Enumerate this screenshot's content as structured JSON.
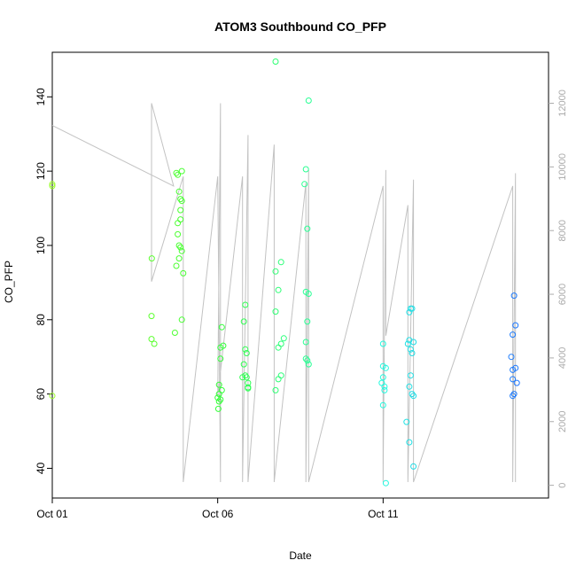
{
  "chart_data": {
    "type": "scatter",
    "title": "ATOM3 Southbound CO_PFP",
    "xlabel": "Date",
    "ylabel": "CO_PFP",
    "x_type": "date",
    "xlim": [
      "2016-10-01",
      "2016-10-16"
    ],
    "ylim": [
      32,
      152
    ],
    "x_ticks": [
      {
        "value": "2016-10-01",
        "label": "Oct 01"
      },
      {
        "value": "2016-10-06",
        "label": "Oct 06"
      },
      {
        "value": "2016-10-11",
        "label": "Oct 11"
      }
    ],
    "y_ticks": [
      40,
      60,
      80,
      100,
      120,
      140
    ],
    "y2_ticks": [
      0,
      2000,
      4000,
      6000,
      8000,
      10000,
      12000
    ],
    "y2lim": [
      -400,
      13600
    ],
    "grid": false,
    "legend": "none",
    "colors": {
      "points_start": "#9bff2a",
      "points_mid_green": "#33ff33",
      "points_mid_cyan": "#22ffdd",
      "points_end": "#1e78ff",
      "altitude_line": "#c2c2c2"
    },
    "series": [
      {
        "kind": "points",
        "points": [
          {
            "x": "2016-10-01T00:00",
            "y": 116.5
          },
          {
            "x": "2016-10-01T00:00",
            "y": 116.0
          },
          {
            "x": "2016-10-01T00:00",
            "y": 59.5
          },
          {
            "x": "2016-10-04T00:10",
            "y": 96.5
          },
          {
            "x": "2016-10-04T00:00",
            "y": 81.0
          },
          {
            "x": "2016-10-04T00:00",
            "y": 74.8
          },
          {
            "x": "2016-10-04T02:00",
            "y": 73.5
          },
          {
            "x": "2016-10-04T18:00",
            "y": 119.5
          },
          {
            "x": "2016-10-04T19:00",
            "y": 119.0
          },
          {
            "x": "2016-10-04T22:00",
            "y": 120.0
          },
          {
            "x": "2016-10-04T20:00",
            "y": 114.5
          },
          {
            "x": "2016-10-04T21:00",
            "y": 112.5
          },
          {
            "x": "2016-10-04T22:00",
            "y": 112.0
          },
          {
            "x": "2016-10-04T21:00",
            "y": 109.5
          },
          {
            "x": "2016-10-04T19:00",
            "y": 106.0
          },
          {
            "x": "2016-10-04T21:00",
            "y": 107.0
          },
          {
            "x": "2016-10-04T19:00",
            "y": 103.0
          },
          {
            "x": "2016-10-04T20:00",
            "y": 100.0
          },
          {
            "x": "2016-10-04T21:00",
            "y": 99.5
          },
          {
            "x": "2016-10-04T22:00",
            "y": 98.5
          },
          {
            "x": "2016-10-04T20:00",
            "y": 96.5
          },
          {
            "x": "2016-10-04T18:00",
            "y": 94.5
          },
          {
            "x": "2016-10-04T23:00",
            "y": 92.5
          },
          {
            "x": "2016-10-04T22:00",
            "y": 80.0
          },
          {
            "x": "2016-10-04T17:00",
            "y": 76.5
          },
          {
            "x": "2016-10-06T03:00",
            "y": 78.0
          },
          {
            "x": "2016-10-06T04:00",
            "y": 73.0
          },
          {
            "x": "2016-10-06T02:00",
            "y": 72.5
          },
          {
            "x": "2016-10-06T02:00",
            "y": 69.5
          },
          {
            "x": "2016-10-06T01:00",
            "y": 62.5
          },
          {
            "x": "2016-10-06T03:00",
            "y": 61.0
          },
          {
            "x": "2016-10-06T01:00",
            "y": 60.0
          },
          {
            "x": "2016-10-06T00:00",
            "y": 59.0
          },
          {
            "x": "2016-10-06T02:00",
            "y": 58.5
          },
          {
            "x": "2016-10-06T01:00",
            "y": 58.0
          },
          {
            "x": "2016-10-06T00:30",
            "y": 56.0
          },
          {
            "x": "2016-10-06T20:00",
            "y": 84.0
          },
          {
            "x": "2016-10-06T19:00",
            "y": 79.5
          },
          {
            "x": "2016-10-06T20:00",
            "y": 72.0
          },
          {
            "x": "2016-10-06T21:00",
            "y": 71.0
          },
          {
            "x": "2016-10-06T19:00",
            "y": 68.0
          },
          {
            "x": "2016-10-06T20:00",
            "y": 65.0
          },
          {
            "x": "2016-10-06T21:00",
            "y": 64.5
          },
          {
            "x": "2016-10-06T18:00",
            "y": 64.5
          },
          {
            "x": "2016-10-06T22:00",
            "y": 63.0
          },
          {
            "x": "2016-10-06T22:00",
            "y": 61.8
          },
          {
            "x": "2016-10-06T22:00",
            "y": 61.5
          },
          {
            "x": "2016-10-07T18:00",
            "y": 149.5
          },
          {
            "x": "2016-10-07T22:00",
            "y": 95.5
          },
          {
            "x": "2016-10-07T18:00",
            "y": 93.0
          },
          {
            "x": "2016-10-07T20:00",
            "y": 88.0
          },
          {
            "x": "2016-10-07T18:00",
            "y": 82.2
          },
          {
            "x": "2016-10-08T00:00",
            "y": 75.0
          },
          {
            "x": "2016-10-07T22:00",
            "y": 73.5
          },
          {
            "x": "2016-10-07T20:00",
            "y": 72.5
          },
          {
            "x": "2016-10-07T22:00",
            "y": 65.0
          },
          {
            "x": "2016-10-07T20:00",
            "y": 64.0
          },
          {
            "x": "2016-10-07T18:00",
            "y": 61.0
          },
          {
            "x": "2016-10-08T18:00",
            "y": 139.0
          },
          {
            "x": "2016-10-08T16:00",
            "y": 120.5
          },
          {
            "x": "2016-10-08T15:00",
            "y": 116.5
          },
          {
            "x": "2016-10-08T17:00",
            "y": 104.5
          },
          {
            "x": "2016-10-08T16:00",
            "y": 87.5
          },
          {
            "x": "2016-10-08T18:00",
            "y": 87.0
          },
          {
            "x": "2016-10-08T17:00",
            "y": 79.5
          },
          {
            "x": "2016-10-08T16:00",
            "y": 74.0
          },
          {
            "x": "2016-10-08T16:00",
            "y": 69.5
          },
          {
            "x": "2016-10-08T17:00",
            "y": 69.0
          },
          {
            "x": "2016-10-08T18:00",
            "y": 68.0
          },
          {
            "x": "2016-10-11T00:00",
            "y": 73.5
          },
          {
            "x": "2016-10-11T00:00",
            "y": 67.5
          },
          {
            "x": "2016-10-11T02:00",
            "y": 67.0
          },
          {
            "x": "2016-10-11T00:00",
            "y": 64.5
          },
          {
            "x": "2016-10-10T23:00",
            "y": 63.0
          },
          {
            "x": "2016-10-11T01:00",
            "y": 62.0
          },
          {
            "x": "2016-10-11T01:00",
            "y": 61.0
          },
          {
            "x": "2016-10-11T00:00",
            "y": 57.0
          },
          {
            "x": "2016-10-11T02:00",
            "y": 36.0
          },
          {
            "x": "2016-10-11T20:00",
            "y": 83.0
          },
          {
            "x": "2016-10-11T21:00",
            "y": 83.0
          },
          {
            "x": "2016-10-11T19:00",
            "y": 82.0
          },
          {
            "x": "2016-10-11T19:00",
            "y": 74.5
          },
          {
            "x": "2016-10-11T22:00",
            "y": 74.0
          },
          {
            "x": "2016-10-11T18:00",
            "y": 73.5
          },
          {
            "x": "2016-10-11T20:00",
            "y": 72.0
          },
          {
            "x": "2016-10-11T21:00",
            "y": 71.0
          },
          {
            "x": "2016-10-11T20:00",
            "y": 65.0
          },
          {
            "x": "2016-10-11T19:00",
            "y": 62.0
          },
          {
            "x": "2016-10-11T21:00",
            "y": 60.0
          },
          {
            "x": "2016-10-11T22:00",
            "y": 59.5
          },
          {
            "x": "2016-10-11T17:00",
            "y": 52.5
          },
          {
            "x": "2016-10-11T19:00",
            "y": 47.0
          },
          {
            "x": "2016-10-11T22:00",
            "y": 40.5
          },
          {
            "x": "2016-10-14T23:00",
            "y": 86.5
          },
          {
            "x": "2016-10-15T00:00",
            "y": 78.5
          },
          {
            "x": "2016-10-14T22:00",
            "y": 76.0
          },
          {
            "x": "2016-10-14T21:00",
            "y": 70.0
          },
          {
            "x": "2016-10-15T00:00",
            "y": 67.0
          },
          {
            "x": "2016-10-14T22:00",
            "y": 66.5
          },
          {
            "x": "2016-10-14T22:00",
            "y": 64.0
          },
          {
            "x": "2016-10-15T01:00",
            "y": 63.0
          },
          {
            "x": "2016-10-14T23:00",
            "y": 60.0
          },
          {
            "x": "2016-10-14T22:00",
            "y": 59.5
          }
        ]
      },
      {
        "kind": "line",
        "axis": "right",
        "points": [
          {
            "x": "2016-10-01T00:00",
            "y": 11300
          },
          {
            "x": "2016-10-04T16:00",
            "y": 9400
          },
          {
            "x": "2016-10-04T00:00",
            "y": 12000
          },
          {
            "x": "2016-10-04T00:00",
            "y": 6400
          },
          {
            "x": "2016-10-04T23:00",
            "y": 9700
          },
          {
            "x": "2016-10-04T23:00",
            "y": 100
          },
          {
            "x": "2016-10-06T00:00",
            "y": 9700
          },
          {
            "x": "2016-10-06T02:00",
            "y": 100
          },
          {
            "x": "2016-10-06T02:00",
            "y": 12000
          },
          {
            "x": "2016-10-06T00:00",
            "y": 2800
          },
          {
            "x": "2016-10-06T18:00",
            "y": 9700
          },
          {
            "x": "2016-10-06T18:00",
            "y": 100
          },
          {
            "x": "2016-10-06T22:00",
            "y": 11000
          },
          {
            "x": "2016-10-06T22:00",
            "y": 100
          },
          {
            "x": "2016-10-07T17:00",
            "y": 10700
          },
          {
            "x": "2016-10-07T17:00",
            "y": 100
          },
          {
            "x": "2016-10-08T16:00",
            "y": 9500
          },
          {
            "x": "2016-10-08T16:00",
            "y": 100
          },
          {
            "x": "2016-10-08T18:00",
            "y": 9900
          },
          {
            "x": "2016-10-08T18:00",
            "y": 100
          },
          {
            "x": "2016-10-11T00:00",
            "y": 9400
          },
          {
            "x": "2016-10-11T00:00",
            "y": 100
          },
          {
            "x": "2016-10-11T02:00",
            "y": 9900
          },
          {
            "x": "2016-10-11T02:00",
            "y": 4700
          },
          {
            "x": "2016-10-11T18:00",
            "y": 8800
          },
          {
            "x": "2016-10-11T18:00",
            "y": 100
          },
          {
            "x": "2016-10-11T22:00",
            "y": 9600
          },
          {
            "x": "2016-10-11T22:00",
            "y": 100
          },
          {
            "x": "2016-10-14T22:00",
            "y": 9400
          },
          {
            "x": "2016-10-14T22:00",
            "y": 100
          },
          {
            "x": "2016-10-15T00:00",
            "y": 9800
          },
          {
            "x": "2016-10-15T00:00",
            "y": 100
          }
        ]
      }
    ]
  }
}
